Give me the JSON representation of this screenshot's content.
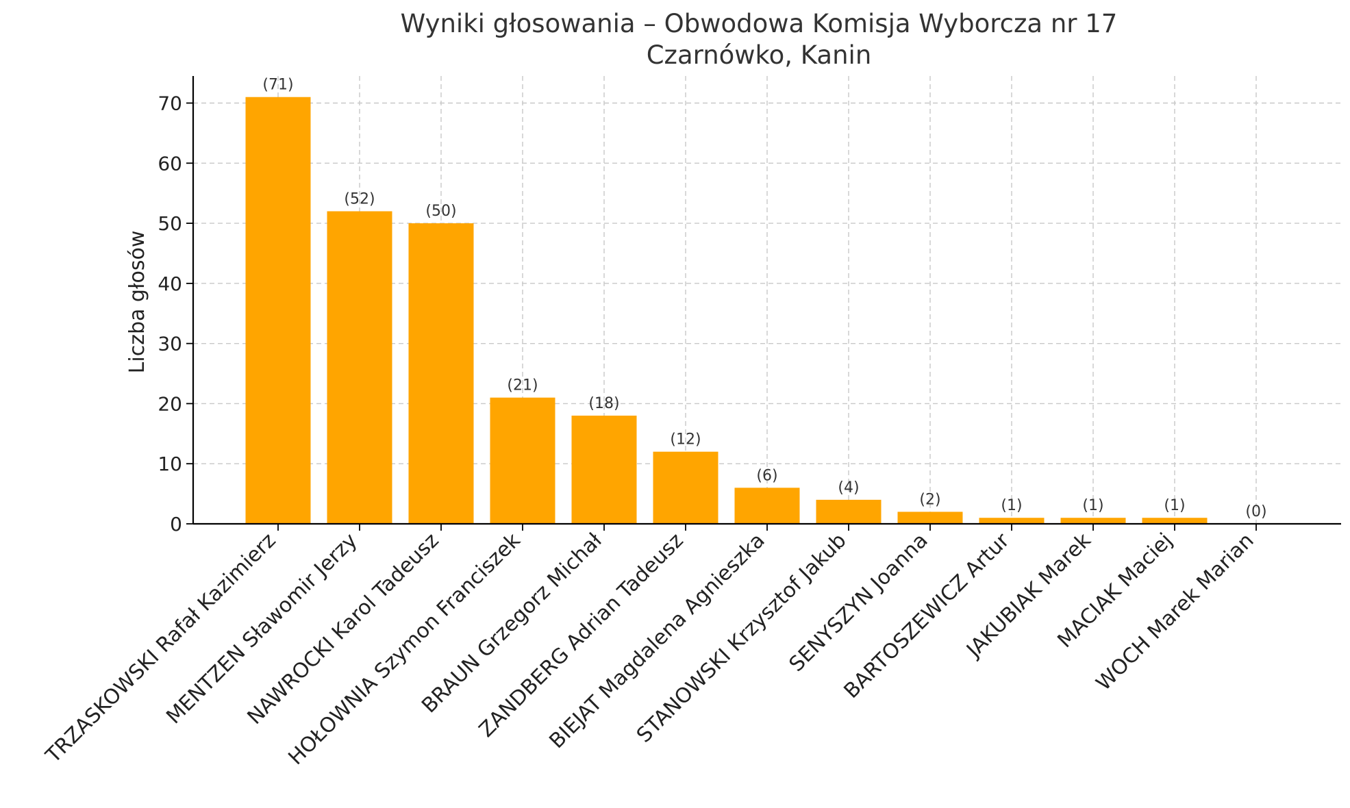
{
  "chart_data": {
    "type": "bar",
    "title": "Wyniki głosowania – Obwodowa Komisja Wyborcza nr 17",
    "subtitle": "Czarnówko, Kanin",
    "xlabel": "",
    "ylabel": "Liczba głosów",
    "ylim": [
      0,
      74.5
    ],
    "yticks": [
      0,
      10,
      20,
      30,
      40,
      50,
      60,
      70
    ],
    "grid": true,
    "bar_color": "#FFA500",
    "categories": [
      "TRZASKOWSKI Rafał Kazimierz",
      "MENTZEN Sławomir Jerzy",
      "NAWROCKI Karol Tadeusz",
      "HOŁOWNIA Szymon Franciszek",
      "BRAUN Grzegorz Michał",
      "ZANDBERG Adrian Tadeusz",
      "BIEJAT Magdalena Agnieszka",
      "STANOWSKI Krzysztof Jakub",
      "SENYSZYN Joanna",
      "BARTOSZEWICZ Artur",
      "JAKUBIAK Marek",
      "MACIAK Maciej",
      "WOCH Marek Marian"
    ],
    "values": [
      71,
      52,
      50,
      21,
      18,
      12,
      6,
      4,
      2,
      1,
      1,
      1,
      0
    ],
    "data_labels": [
      "(71)",
      "(52)",
      "(50)",
      "(21)",
      "(18)",
      "(12)",
      "(6)",
      "(4)",
      "(2)",
      "(1)",
      "(1)",
      "(1)",
      "(0)"
    ]
  }
}
